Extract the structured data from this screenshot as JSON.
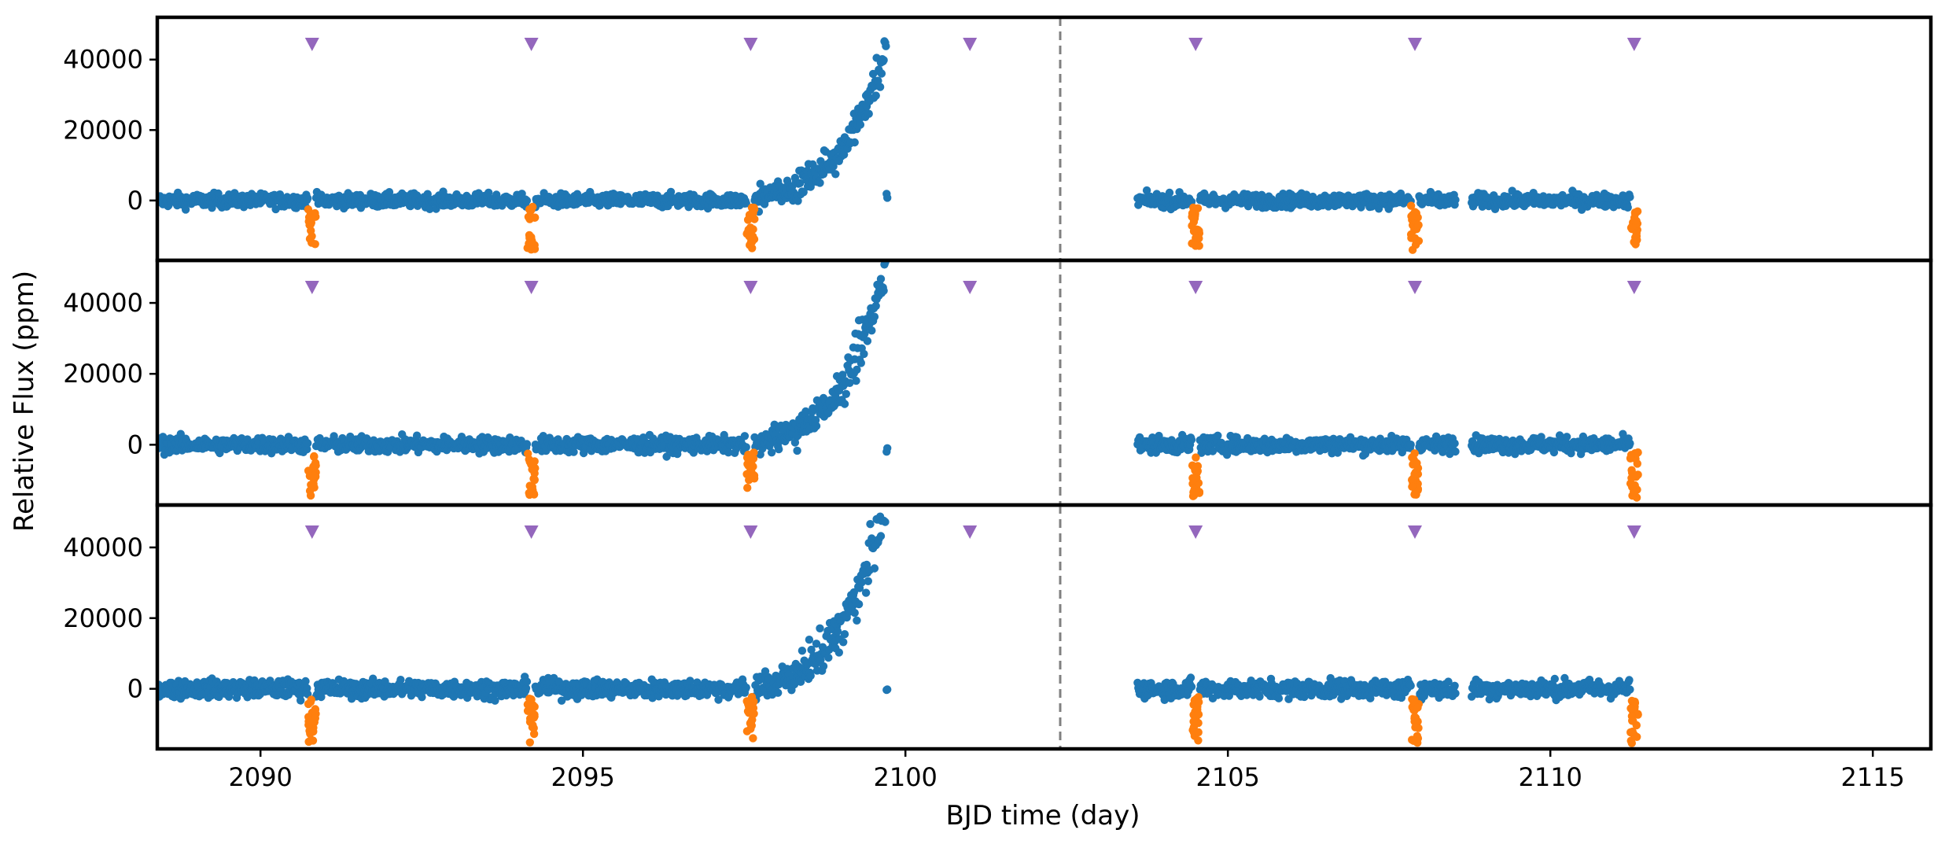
{
  "chart_data": {
    "type": "scatter",
    "xlabel": "BJD time (day)",
    "ylabel": "Relative Flux (ppm)",
    "xlim": [
      2088.4,
      2115.9
    ],
    "ylim": [
      -17000,
      52000
    ],
    "x_ticks": [
      2090,
      2095,
      2100,
      2105,
      2110,
      2115
    ],
    "y_ticks": [
      0,
      20000,
      40000
    ],
    "grid": false,
    "legend": "none",
    "vertical_reference_line": {
      "x": 2102.4,
      "style": "dashed",
      "color": "#808080"
    },
    "transit_marker_times": [
      2090.8,
      2094.2,
      2097.6,
      2101.0,
      2104.5,
      2107.9,
      2111.3
    ],
    "colors": {
      "flux": "#1f77b4",
      "in_transit": "#ff7f0e",
      "marker": "#9467bd",
      "frame": "#000000"
    },
    "panels": [
      {
        "name": "panel-1",
        "segments": [
          [
            2088.4,
            2102.2
          ],
          [
            2103.6,
            2111.3
          ]
        ],
        "rise": {
          "start": 2097.6,
          "end": 2099.7,
          "peak_flux": 43000,
          "exp_scale": 0.55
        },
        "transit_depth": 13500,
        "scatter": 1400
      },
      {
        "name": "panel-2",
        "segments": [
          [
            2088.4,
            2102.2
          ],
          [
            2103.6,
            2111.3
          ]
        ],
        "rise": {
          "start": 2097.6,
          "end": 2099.7,
          "peak_flux": 52000,
          "exp_scale": 0.5
        },
        "transit_depth": 14500,
        "scatter": 1600
      },
      {
        "name": "panel-3",
        "segments": [
          [
            2088.4,
            2102.2
          ],
          [
            2103.6,
            2111.3
          ]
        ],
        "rise": {
          "start": 2097.6,
          "end": 2099.7,
          "peak_flux": 55000,
          "exp_scale": 0.5
        },
        "transit_depth": 15500,
        "scatter": 1800
      }
    ]
  }
}
